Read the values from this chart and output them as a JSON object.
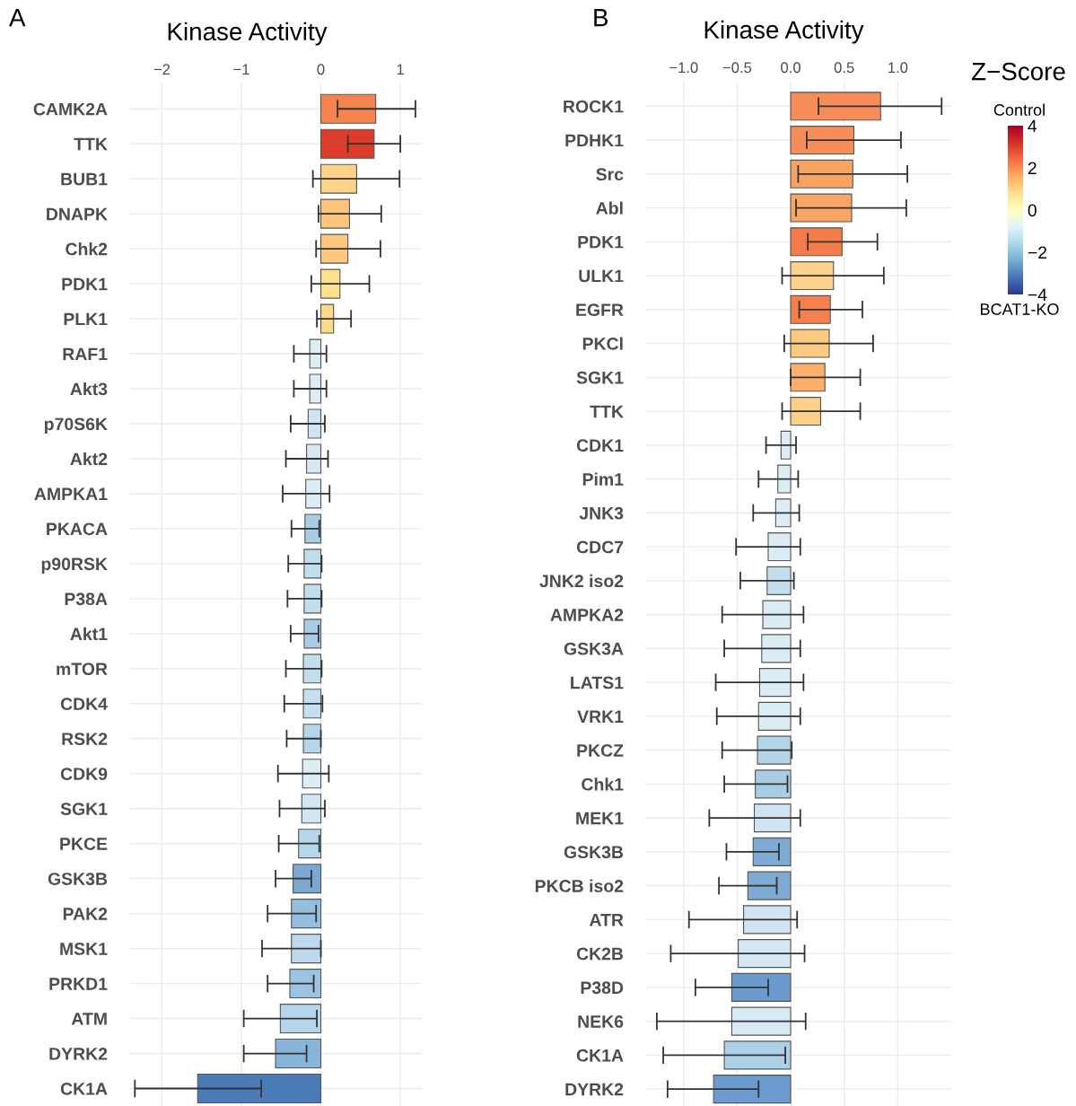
{
  "chart_data": [
    {
      "type": "bar",
      "orientation": "horizontal",
      "title": "Kinase Activity",
      "annotations": [
        "A"
      ],
      "categories": [
        "CAMK2A",
        "TTK",
        "BUB1",
        "DNAPK",
        "Chk2",
        "PDK1",
        "PLK1",
        "RAF1",
        "Akt3",
        "p70S6K",
        "Akt2",
        "AMPKA1",
        "PKACA",
        "p90RSK",
        "P38A",
        "Akt1",
        "mTOR",
        "CDK4",
        "RSK2",
        "CDK9",
        "SGK1",
        "PKCE",
        "GSK3B",
        "PAK2",
        "MSK1",
        "PRKD1",
        "ATM",
        "DYRK2",
        "CK1A"
      ],
      "values": [
        0.69,
        0.67,
        0.45,
        0.36,
        0.34,
        0.24,
        0.16,
        -0.14,
        -0.14,
        -0.16,
        -0.18,
        -0.19,
        -0.2,
        -0.21,
        -0.21,
        -0.21,
        -0.22,
        -0.22,
        -0.22,
        -0.23,
        -0.24,
        -0.28,
        -0.35,
        -0.37,
        -0.37,
        -0.39,
        -0.51,
        -0.57,
        -1.55
      ],
      "errors": [
        [
          0.21,
          1.19
        ],
        [
          0.34,
          1.0
        ],
        [
          -0.1,
          0.99
        ],
        [
          -0.03,
          0.76
        ],
        [
          -0.06,
          0.75
        ],
        [
          -0.12,
          0.61
        ],
        [
          -0.05,
          0.38
        ],
        [
          -0.34,
          0.07
        ],
        [
          -0.34,
          0.07
        ],
        [
          -0.38,
          0.05
        ],
        [
          -0.44,
          0.09
        ],
        [
          -0.48,
          0.11
        ],
        [
          -0.37,
          -0.02
        ],
        [
          -0.41,
          0.01
        ],
        [
          -0.42,
          0.01
        ],
        [
          -0.38,
          -0.03
        ],
        [
          -0.44,
          0.01
        ],
        [
          -0.46,
          0.02
        ],
        [
          -0.43,
          0.0
        ],
        [
          -0.54,
          0.1
        ],
        [
          -0.52,
          0.05
        ],
        [
          -0.53,
          -0.02
        ],
        [
          -0.57,
          -0.12
        ],
        [
          -0.67,
          -0.06
        ],
        [
          -0.74,
          0.0
        ],
        [
          -0.67,
          -0.09
        ],
        [
          -0.97,
          -0.05
        ],
        [
          -0.97,
          -0.18
        ],
        [
          -2.34,
          -0.75
        ]
      ],
      "colors": [
        "#f4834e",
        "#dc3c2a",
        "#fdd28a",
        "#fdc47e",
        "#fdc77f",
        "#fee08b",
        "#fdd98a",
        "#dcedf5",
        "#dcedf5",
        "#cfe4f0",
        "#d6e9f3",
        "#dbecf4",
        "#a9cde4",
        "#c2ddec",
        "#c2ddec",
        "#a9cde4",
        "#c2ddec",
        "#c6dfee",
        "#b5d5e8",
        "#dcedf5",
        "#d3e7f2",
        "#b5d5e8",
        "#7ba7d2",
        "#96bfdf",
        "#bcdaec",
        "#9cc4e1",
        "#b5d6ea",
        "#89b4d9",
        "#4a7ab8"
      ],
      "xlim": [
        -2.4,
        1.27
      ],
      "xticks": [
        {
          "value": -2,
          "label": "−2"
        },
        {
          "value": -1,
          "label": "−1"
        },
        0,
        1
      ],
      "grid": true
    },
    {
      "type": "bar",
      "orientation": "horizontal",
      "title": "Kinase Activity",
      "annotations": [
        "B",
        "Control",
        "BCAT1-KO"
      ],
      "categories": [
        "ROCK1",
        "PDHK1",
        "Src",
        "Abl",
        "PDK1",
        "ULK1",
        "EGFR",
        "PKCl",
        "SGK1",
        "TTK",
        "CDK1",
        "Pim1",
        "JNK3",
        "CDC7",
        "JNK2 iso2",
        "AMPKA2",
        "GSK3A",
        "LATS1",
        "VRK1",
        "PKCZ",
        "Chk1",
        "MEK1",
        "GSK3B",
        "PKCB iso2",
        "ATR",
        "CK2B",
        "P38D",
        "NEK6",
        "CK1A",
        "DYRK2"
      ],
      "values": [
        0.84,
        0.59,
        0.58,
        0.57,
        0.48,
        0.4,
        0.37,
        0.36,
        0.32,
        0.28,
        -0.09,
        -0.12,
        -0.14,
        -0.21,
        -0.22,
        -0.26,
        -0.27,
        -0.29,
        -0.3,
        -0.31,
        -0.33,
        -0.34,
        -0.35,
        -0.4,
        -0.44,
        -0.49,
        -0.55,
        -0.55,
        -0.62,
        -0.72
      ],
      "errors": [
        [
          0.26,
          1.41
        ],
        [
          0.15,
          1.03
        ],
        [
          0.07,
          1.09
        ],
        [
          0.05,
          1.08
        ],
        [
          0.16,
          0.81
        ],
        [
          -0.08,
          0.87
        ],
        [
          0.08,
          0.67
        ],
        [
          -0.06,
          0.77
        ],
        [
          0.0,
          0.65
        ],
        [
          -0.08,
          0.65
        ],
        [
          -0.23,
          0.05
        ],
        [
          -0.3,
          0.07
        ],
        [
          -0.35,
          0.08
        ],
        [
          -0.51,
          0.09
        ],
        [
          -0.47,
          0.03
        ],
        [
          -0.64,
          0.12
        ],
        [
          -0.62,
          0.09
        ],
        [
          -0.7,
          0.12
        ],
        [
          -0.69,
          0.09
        ],
        [
          -0.64,
          0.01
        ],
        [
          -0.62,
          -0.03
        ],
        [
          -0.76,
          0.09
        ],
        [
          -0.6,
          -0.11
        ],
        [
          -0.67,
          -0.13
        ],
        [
          -0.95,
          0.06
        ],
        [
          -1.12,
          0.13
        ],
        [
          -0.89,
          -0.21
        ],
        [
          -1.25,
          0.14
        ],
        [
          -1.19,
          -0.05
        ],
        [
          -1.15,
          -0.3
        ]
      ],
      "colors": [
        "#f68d59",
        "#f78e58",
        "#f9a363",
        "#f9a566",
        "#f47b4a",
        "#fdd28a",
        "#f57f4d",
        "#fdcb80",
        "#fbaf6b",
        "#fdd088",
        "#dcedf5",
        "#dcedf5",
        "#dcedf5",
        "#dbecf4",
        "#c2ddec",
        "#dbecf4",
        "#dbecf4",
        "#dbecf4",
        "#dcedf5",
        "#b2d3e8",
        "#a9cde4",
        "#cfe4f0",
        "#7eaad4",
        "#7eaad4",
        "#cfe4f0",
        "#d4e8f3",
        "#6a9ace",
        "#d6eaf4",
        "#acd0e6",
        "#6b9bcf"
      ],
      "xlim": [
        -1.35,
        1.5
      ],
      "xticks": [
        {
          "value": -1.0,
          "label": "−1.0"
        },
        {
          "value": -0.5,
          "label": "−0.5"
        },
        {
          "value": 0.0,
          "label": "0.0"
        },
        {
          "value": 0.5,
          "label": "0.5"
        },
        {
          "value": 1.0,
          "label": "1.0"
        }
      ],
      "grid": true,
      "clabel": "Z−Score",
      "clim": [
        -4,
        4
      ],
      "cticks": [
        4,
        2,
        0,
        {
          "value": -2,
          "label": "−2"
        },
        {
          "value": -4,
          "label": "−4"
        }
      ]
    }
  ]
}
